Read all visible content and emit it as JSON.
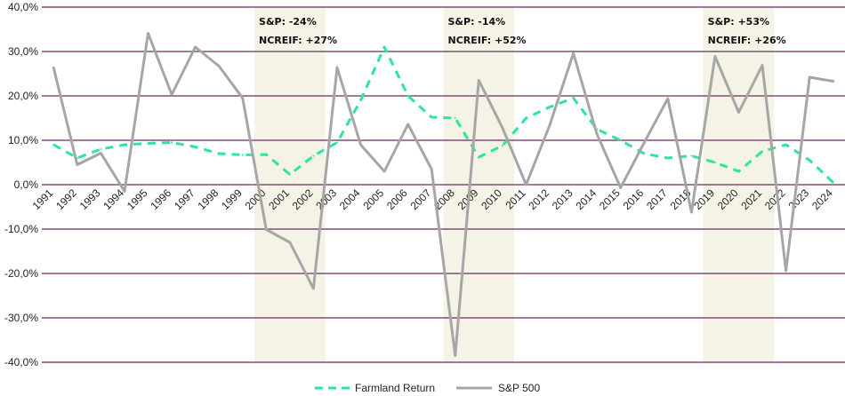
{
  "chart_data": {
    "type": "line",
    "title": "",
    "xlabel": "",
    "ylabel": "",
    "ylim": [
      -40,
      40
    ],
    "y_ticks": [
      40,
      30,
      20,
      10,
      0,
      -10,
      -20,
      -30,
      -40
    ],
    "y_tick_labels": [
      "40,0%",
      "30,0%",
      "20,0%",
      "10,0%",
      "0,0%",
      "-10,0%",
      "-20,0%",
      "-30,0%",
      "-40,0%"
    ],
    "categories": [
      "1991",
      "1992",
      "1993",
      "1994",
      "1995",
      "1996",
      "1997",
      "1998",
      "1999",
      "2000",
      "2001",
      "2002",
      "2003",
      "2004",
      "2005",
      "2006",
      "2007",
      "2008",
      "2009",
      "2010",
      "2011",
      "2012",
      "2013",
      "2014",
      "2015",
      "2016",
      "2017",
      "2018",
      "2019",
      "2020",
      "2021",
      "2022",
      "2023",
      "2024"
    ],
    "series": [
      {
        "name": "Farmland Return",
        "style": "dashed",
        "color": "#2EE59D",
        "values": [
          9.0,
          6.0,
          8.0,
          9.0,
          9.3,
          9.5,
          8.5,
          7.0,
          6.7,
          6.8,
          2.3,
          6.5,
          9.5,
          19.0,
          31.0,
          20.0,
          15.2,
          15.0,
          6.2,
          8.8,
          15.0,
          17.5,
          19.5,
          12.5,
          10.0,
          7.0,
          6.0,
          6.5,
          5.0,
          3.0,
          7.5,
          9.0,
          5.5,
          0.5
        ]
      },
      {
        "name": "S&P 500",
        "style": "solid",
        "color": "#A6A6A6",
        "values": [
          26.3,
          4.5,
          7.1,
          -1.5,
          34.1,
          20.3,
          31.0,
          26.7,
          19.5,
          -10.1,
          -13.0,
          -23.4,
          26.4,
          9.0,
          3.0,
          13.6,
          3.5,
          -38.5,
          23.5,
          12.8,
          0.0,
          13.4,
          29.6,
          11.4,
          -0.7,
          9.5,
          19.4,
          -6.2,
          28.9,
          16.3,
          26.9,
          -19.4,
          24.2,
          23.3
        ]
      }
    ],
    "shaded_regions": [
      {
        "from": "2000",
        "to": "2002",
        "lines": [
          "S&P: -24%",
          "NCREIF: +27%"
        ]
      },
      {
        "from": "2008",
        "to": "2010",
        "lines": [
          "S&P: -14%",
          "NCREIF: +52%"
        ]
      },
      {
        "from": "2019",
        "to": "2021",
        "lines": [
          "S&P: +53%",
          "NCREIF: +26%"
        ]
      }
    ],
    "grid": true,
    "grid_color": "#6B2C5F",
    "shade_color": "#F5F3E6",
    "legend_position": "bottom"
  }
}
